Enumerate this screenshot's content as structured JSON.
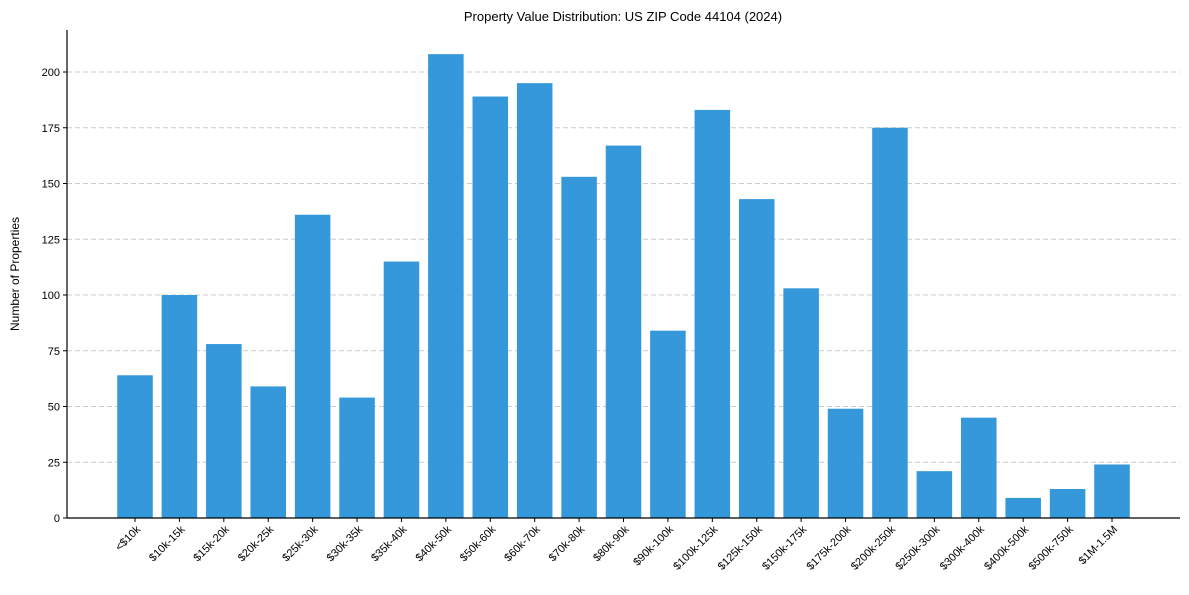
{
  "chart_data": {
    "type": "bar",
    "title": "Property Value Distribution: US ZIP Code 44104 (2024)",
    "xlabel": "",
    "ylabel": "Number of Properties",
    "ylim": [
      0,
      220
    ],
    "yticks": [
      0,
      25,
      50,
      75,
      100,
      125,
      150,
      175,
      200
    ],
    "grid": {
      "axis": "y",
      "style": "dashed",
      "color": "#cccccc"
    },
    "legend": null,
    "bar_color": "#3498db",
    "categories": [
      "<$10k",
      "$10k-15k",
      "$15k-20k",
      "$20k-25k",
      "$25k-30k",
      "$30k-35k",
      "$35k-40k",
      "$40k-50k",
      "$50k-60k",
      "$60k-70k",
      "$70k-80k",
      "$80k-90k",
      "$90k-100k",
      "$100k-125k",
      "$125k-150k",
      "$150k-175k",
      "$175k-200k",
      "$200k-250k",
      "$250k-300k",
      "$300k-400k",
      "$400k-500k",
      "$500k-750k",
      "$1M-1.5M"
    ],
    "values": [
      64,
      100,
      78,
      59,
      136,
      54,
      115,
      208,
      189,
      195,
      153,
      167,
      84,
      183,
      143,
      103,
      49,
      175,
      21,
      45,
      9,
      13,
      24
    ]
  }
}
